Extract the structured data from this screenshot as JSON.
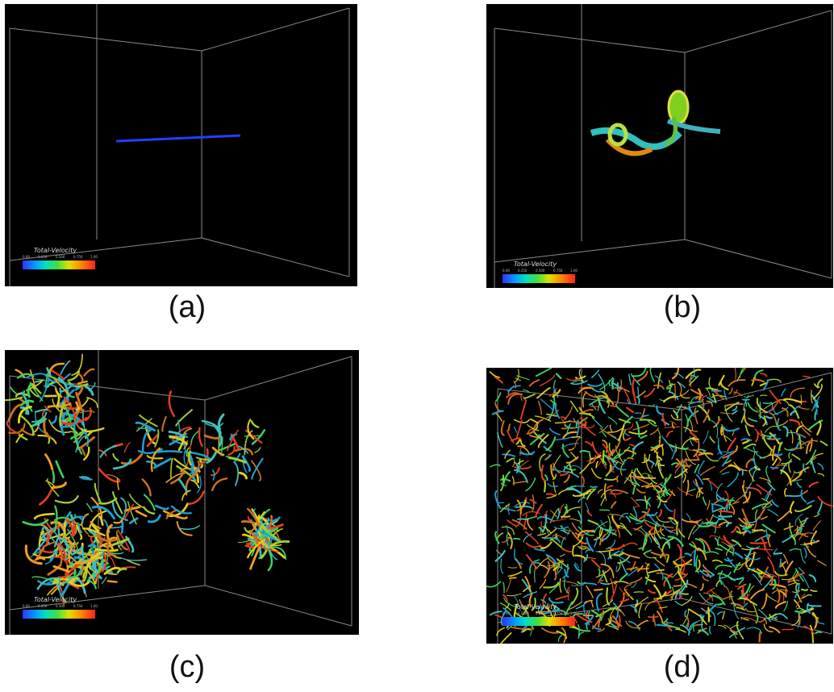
{
  "figure": {
    "panels": [
      {
        "id": "a",
        "caption": "(a)",
        "legend_title": "Total-Velocity",
        "ticks": [
          "0.00",
          "0.250",
          "0.500",
          "0.750",
          "1.00"
        ]
      },
      {
        "id": "b",
        "caption": "(b)",
        "legend_title": "Total-Velocity",
        "ticks": [
          "0.00",
          "0.250",
          "0.500",
          "0.750",
          "1.00"
        ]
      },
      {
        "id": "c",
        "caption": "(c)",
        "legend_title": "Total-Velocity",
        "ticks": [
          "0.00",
          "0.250",
          "0.500",
          "0.750",
          "1.00"
        ]
      },
      {
        "id": "d",
        "caption": "(d)",
        "legend_title": "Total-Velocity",
        "ticks": [
          "0.00",
          "0.250",
          "0.500",
          "0.750",
          "1.00"
        ]
      }
    ],
    "colors": {
      "background": "#000000",
      "box_edges": "#8a8a8a",
      "line_a": "#2040ff"
    }
  }
}
